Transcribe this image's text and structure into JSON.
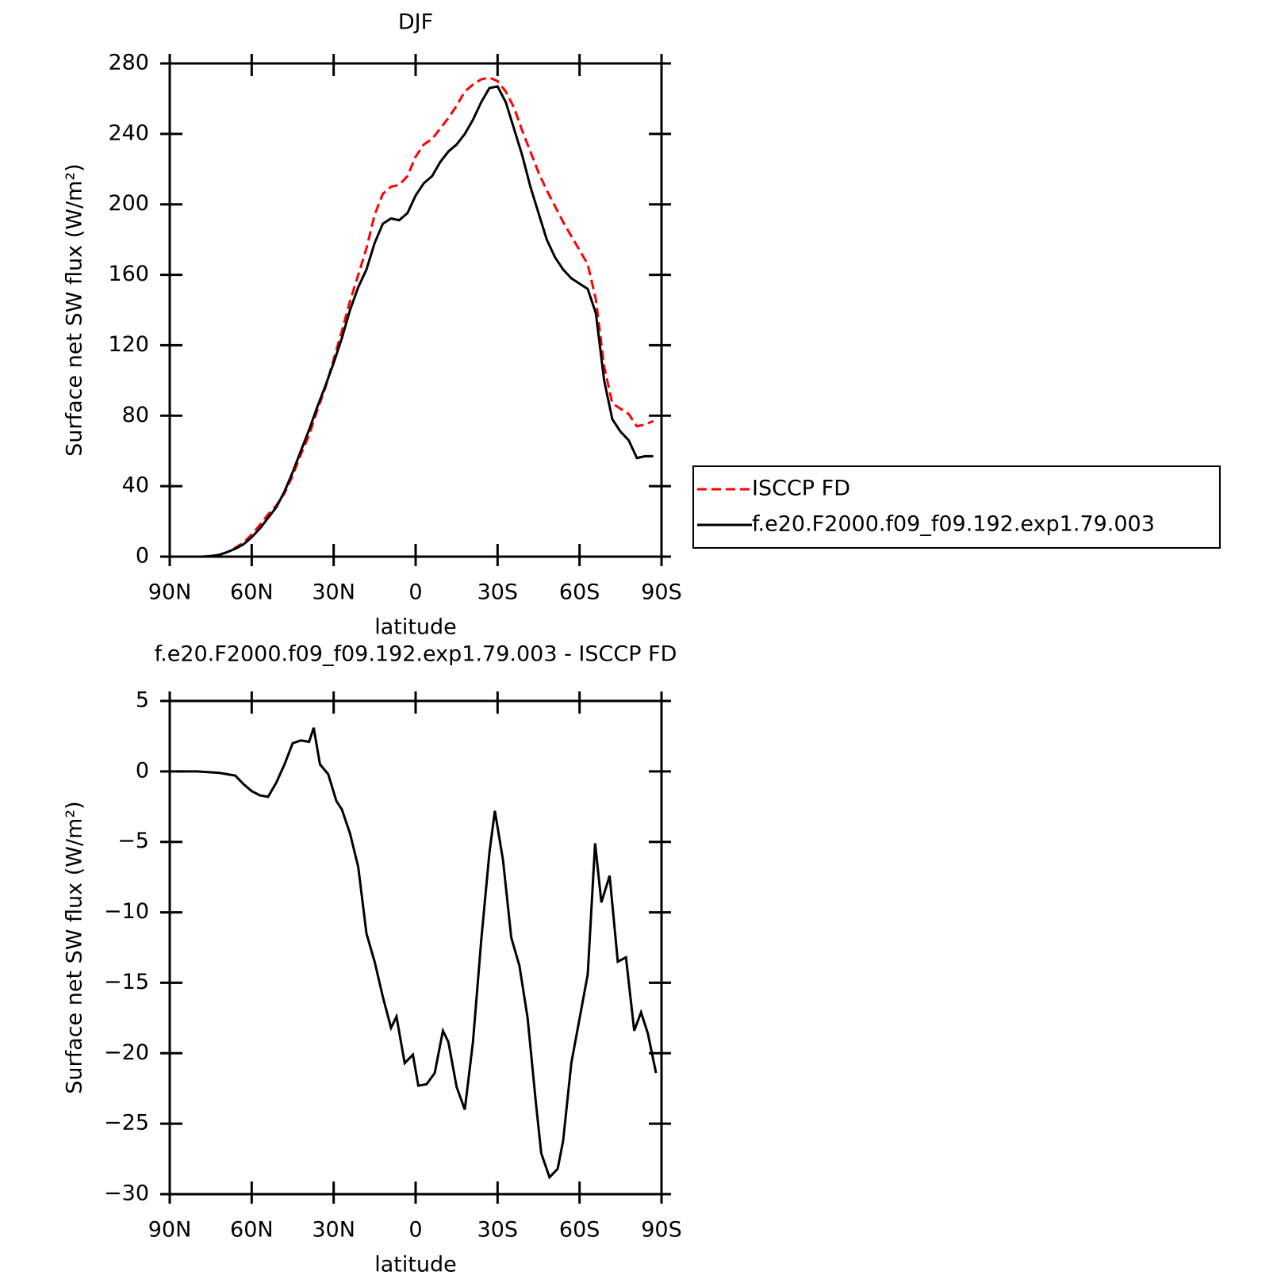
{
  "chart_data": [
    {
      "type": "line",
      "title": "DJF",
      "xlabel": "latitude",
      "ylabel": "Surface net SW flux (W/m²)",
      "x": [
        87,
        84,
        81,
        78,
        75,
        72,
        69,
        66,
        63,
        60,
        57,
        54,
        51,
        48,
        45,
        42,
        39,
        36,
        33,
        30,
        27,
        24,
        21,
        18,
        15,
        12,
        9,
        6,
        3,
        0,
        -3,
        -6,
        -9,
        -12,
        -15,
        -18,
        -21,
        -24,
        -27,
        -30,
        -33,
        -36,
        -39,
        -42,
        -45,
        -48,
        -51,
        -54,
        -57,
        -60,
        -63,
        -66,
        -69,
        -72,
        -75,
        -78,
        -81,
        -84,
        -87
      ],
      "series": [
        {
          "name": "ISCCP FD",
          "color": "#ff0000",
          "dash": true,
          "values": [
            0,
            0,
            0,
            0,
            0.3,
            1,
            2.5,
            5,
            8,
            12.5,
            18,
            24,
            29,
            36,
            46,
            58,
            69,
            83,
            96,
            112,
            128,
            145,
            160,
            175,
            194,
            206,
            210,
            211,
            216,
            227,
            234,
            237,
            243,
            249,
            256,
            264,
            268,
            271,
            272,
            270,
            264,
            255,
            242,
            230,
            218,
            208,
            199,
            190,
            182,
            174,
            166,
            146,
            108,
            87,
            84,
            81,
            74,
            75,
            77
          ]
        },
        {
          "name": "f.e20.F2000.f09_f09.192.exp1.79.003",
          "color": "#000000",
          "dash": false,
          "values": [
            0,
            0,
            0,
            0,
            0.3,
            1,
            2.5,
            4.5,
            7,
            11,
            16,
            22,
            28,
            37,
            48,
            60,
            72,
            85,
            97,
            110,
            124,
            140,
            153,
            163,
            178,
            189,
            192,
            191,
            195,
            205,
            212,
            216,
            224,
            230,
            234,
            240,
            248,
            258,
            266,
            267,
            258,
            243,
            228,
            210,
            195,
            180,
            170,
            163,
            158,
            155,
            152,
            138,
            100,
            78,
            71,
            66,
            56,
            57,
            57
          ]
        }
      ],
      "xlim": [
        90,
        -90
      ],
      "xticks": [
        {
          "value": 90,
          "label": "90N"
        },
        {
          "value": 60,
          "label": "60N"
        },
        {
          "value": 30,
          "label": "30N"
        },
        0,
        {
          "value": -30,
          "label": "30S"
        },
        {
          "value": -60,
          "label": "60S"
        },
        {
          "value": -90,
          "label": "90S"
        }
      ],
      "ylim": [
        0,
        280
      ],
      "yticks": [
        0,
        40,
        80,
        120,
        160,
        200,
        240,
        280
      ],
      "grid": false,
      "legend": "outside-right"
    },
    {
      "type": "line",
      "title": "f.e20.F2000.f09_f09.192.exp1.79.003 - ISCCP FD",
      "xlabel": "latitude",
      "ylabel": "Surface net SW flux (W/m²)",
      "x": [
        88,
        84,
        80,
        76,
        72,
        69,
        66,
        63,
        60,
        57,
        54,
        51,
        48,
        45,
        42,
        39,
        37.3,
        35,
        32,
        29,
        27,
        24,
        21,
        18,
        15,
        12,
        9,
        7,
        4,
        1,
        -1,
        -4,
        -7,
        -10,
        -12,
        -15,
        -18,
        -21,
        -24,
        -27,
        -29,
        -32,
        -35,
        -38,
        -41,
        -44,
        -46,
        -49,
        -52,
        -54,
        -57,
        -63,
        -65.7,
        -68,
        -71,
        -74,
        -77,
        -80,
        -82.5,
        -85,
        -88
      ],
      "series": [
        {
          "color": "#000000",
          "dash": false,
          "values": [
            0,
            0,
            0,
            -0.05,
            -0.1,
            -0.2,
            -0.3,
            -0.9,
            -1.4,
            -1.7,
            -1.8,
            -0.8,
            0.5,
            2,
            2.2,
            2.1,
            3.1,
            0.5,
            -0.2,
            -2.1,
            -2.7,
            -4.4,
            -6.8,
            -11.5,
            -13.5,
            -16,
            -18.2,
            -17.4,
            -20.7,
            -20.1,
            -22.3,
            -22.2,
            -21.4,
            -18.4,
            -19.2,
            -22.4,
            -24,
            -19.2,
            -12,
            -5.8,
            -2.8,
            -6.3,
            -11.8,
            -13.8,
            -17.5,
            -23.5,
            -27.1,
            -28.8,
            -28.2,
            -26.2,
            -20.7,
            -14.4,
            -5.1,
            -9.3,
            -7.4,
            -13.5,
            -13.2,
            -18.4,
            -17.1,
            -18.6,
            -21.4
          ]
        }
      ],
      "xlim": [
        90,
        -90
      ],
      "xticks": [
        {
          "value": 90,
          "label": "90N"
        },
        {
          "value": 60,
          "label": "60N"
        },
        {
          "value": 30,
          "label": "30N"
        },
        0,
        {
          "value": -30,
          "label": "30S"
        },
        {
          "value": -60,
          "label": "60S"
        },
        {
          "value": -90,
          "label": "90S"
        }
      ],
      "ylim": [
        -30,
        5
      ],
      "yticks": [
        {
          "value": -30,
          "label": "−30"
        },
        {
          "value": -25,
          "label": "−25"
        },
        {
          "value": -20,
          "label": "−20"
        },
        {
          "value": -15,
          "label": "−15"
        },
        {
          "value": -10,
          "label": "−10"
        },
        {
          "value": -5,
          "label": "−5"
        },
        0,
        5
      ],
      "grid": false
    }
  ]
}
